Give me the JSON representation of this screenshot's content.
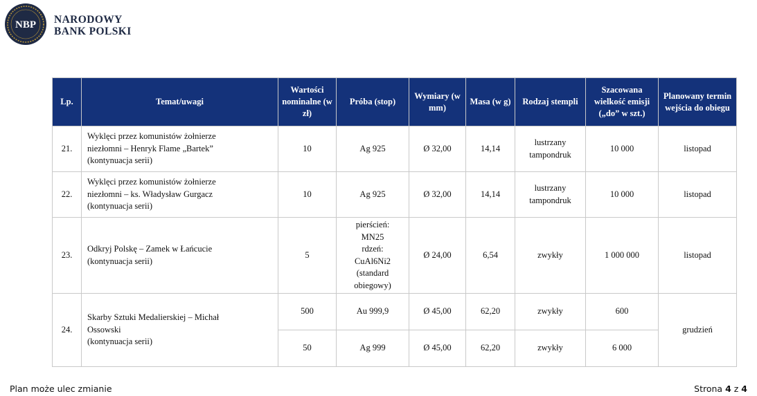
{
  "header": {
    "logo_text": "NBP",
    "bank_name_line1": "NARODOWY",
    "bank_name_line2": "BANK POLSKI",
    "colors": {
      "navy": "#1f2a44",
      "gold": "#b8953a"
    }
  },
  "table": {
    "header_color": "#14327a",
    "columns": [
      "Lp.",
      "Temat/uwagi",
      "Wartości nominalne (w zł)",
      "Próba (stop)",
      "Wymiary (w mm)",
      "Masa (w g)",
      "Rodzaj stempli",
      "Szacowana wielkość emisji („do” w szt.)",
      "Planowany termin wejścia do obiegu"
    ],
    "rows": [
      {
        "lp": "21.",
        "topic": [
          "Wyklęci przez komunistów żołnierze",
          "niezłomni – Henryk Flame „Bartek”",
          "(kontynuacja serii)"
        ],
        "nominal": "10",
        "alloy": "Ag 925",
        "dimensions": "Ø 32,00",
        "mass": "14,14",
        "stamp": [
          "lustrzany",
          "tampondruk"
        ],
        "emission": "10 000",
        "term": "listopad"
      },
      {
        "lp": "22.",
        "topic": [
          "Wyklęci przez komunistów żołnierze",
          "niezłomni – ks. Władysław Gurgacz",
          "(kontynuacja serii)"
        ],
        "nominal": "10",
        "alloy": "Ag 925",
        "dimensions": "Ø 32,00",
        "mass": "14,14",
        "stamp": [
          "lustrzany",
          "tampondruk"
        ],
        "emission": "10 000",
        "term": "listopad"
      },
      {
        "lp": "23.",
        "topic": [
          "Odkryj Polskę – Zamek w Łańcucie",
          "(kontynuacja serii)"
        ],
        "nominal": "5",
        "alloy": [
          "pierścień:",
          "MN25",
          "rdzeń:",
          "CuAl6Ni2",
          "(standard",
          "obiegowy)"
        ],
        "dimensions": "Ø 24,00",
        "mass": "6,54",
        "stamp": "zwykły",
        "emission": "1 000 000",
        "term": "listopad"
      },
      {
        "lp": "24.",
        "topic": [
          "Skarby Sztuki Medalierskiej – Michał",
          "Ossowski",
          "(kontynuacja serii)"
        ],
        "term": "grudzień",
        "variants": [
          {
            "nominal": "500",
            "alloy": "Au 999,9",
            "dimensions": "Ø 45,00",
            "mass": "62,20",
            "stamp": "zwykły",
            "emission": "600"
          },
          {
            "nominal": "50",
            "alloy": "Ag 999",
            "dimensions": "Ø 45,00",
            "mass": "62,20",
            "stamp": "zwykły",
            "emission": "6 000"
          }
        ]
      }
    ]
  },
  "footer": {
    "note": "Plan może ulec zmianie",
    "page_label": "Strona",
    "page_current": "4",
    "page_sep": "z",
    "page_total": "4"
  }
}
